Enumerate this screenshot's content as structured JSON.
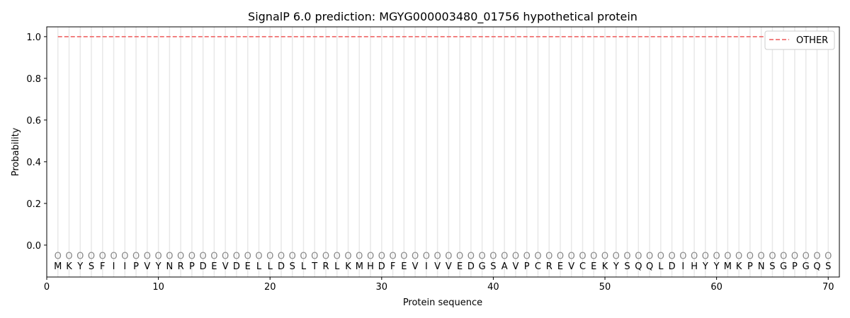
{
  "chart_data": {
    "type": "line",
    "title": "SignalP 6.0 prediction: MGYG000003480_01756 hypothetical protein",
    "xlabel": "Protein sequence",
    "ylabel": "Probability",
    "xlim": [
      0,
      71
    ],
    "ylim": [
      -0.153,
      1.047
    ],
    "xticks": [
      0,
      10,
      20,
      30,
      40,
      50,
      60,
      70
    ],
    "yticks": [
      "0.0",
      "0.2",
      "0.4",
      "0.6",
      "0.8",
      "1.0"
    ],
    "grid": "vertical lines at each residue",
    "legend_position": "top-right",
    "sequence": "MKYSFIIPVYNRPDEVDELLDSLTRLKMHDFEVIVVEDGSAVPCREVCEKYSQQLDIHYYMKPNSGPGQS",
    "region_label": "O",
    "series": [
      {
        "name": "OTHER",
        "color": "#f07070",
        "style": "dashed",
        "x_start": 1,
        "x_end": 70,
        "value": 1.0
      }
    ]
  }
}
